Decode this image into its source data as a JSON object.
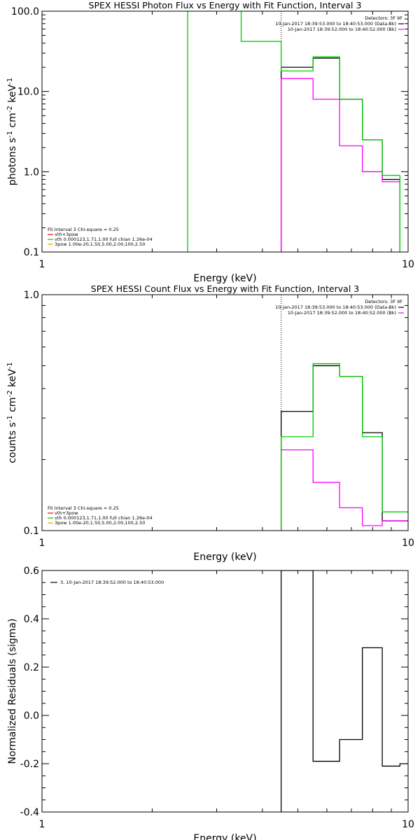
{
  "chart_data": [
    {
      "type": "line",
      "title": "SPEX HESSI Photon Flux vs Energy with Fit Function, Interval 3",
      "xlabel": "Energy (keV)",
      "ylabel": "photons s^-1 cm^-2 keV^-1",
      "xscale": "log",
      "yscale": "log",
      "xlim": [
        1,
        10
      ],
      "ylim": [
        0.1,
        100
      ],
      "xticks": [
        {
          "v": 1,
          "label": "1"
        },
        {
          "v": 10,
          "label": "10"
        }
      ],
      "yticks": [
        {
          "v": 0.1,
          "label": "0.1"
        },
        {
          "v": 1,
          "label": "1.0"
        },
        {
          "v": 10,
          "label": "10.0"
        },
        {
          "v": 100,
          "label": "100.0"
        }
      ],
      "vline": 4.5,
      "legend_top": {
        "position": "top-right",
        "lines": [
          {
            "text": "Detectors: 3F 9F",
            "color": null
          },
          {
            "text": "10-Jan-2017 18:39:53.000 to 18:40:53.000 (Data-Bk)",
            "color": "#000000"
          },
          {
            "text": "10-Jan-2017 18:39:52.000 to 18:40:52.000 (Bk)",
            "color": "#ff00ff"
          }
        ]
      },
      "legend_bottom": {
        "position": "bottom-left",
        "header": "Fit Interval 3   Chi-square = 0.25",
        "lines": [
          {
            "text": "vth+3pow",
            "color": "#ff0000"
          },
          {
            "text": "vth 0.000123,1.71,1.00   full chian 1.26e-04",
            "color": "#00cc00"
          },
          {
            "text": "3pow 1.00e-20,1.50,5.00,2.00,100,2.50",
            "color": "#e8a000"
          }
        ]
      },
      "series": [
        {
          "name": "Data-Bk",
          "color": "#000000",
          "edges": [
            4.5,
            5.5,
            6.5,
            7.5,
            8.5,
            9.5,
            10
          ],
          "values": [
            20,
            26,
            8,
            2.5,
            0.8,
            0.08
          ]
        },
        {
          "name": "Bk",
          "color": "#ff00ff",
          "edges": [
            4.5,
            5.5,
            6.5,
            7.5,
            8.5,
            9.5,
            10
          ],
          "values": [
            14.5,
            8,
            2.1,
            1.0,
            0.75,
            0.08
          ]
        },
        {
          "name": "vth+3pow",
          "color": "#00cc00",
          "edges": [
            2.5,
            3.5,
            4.5,
            5.5,
            6.5,
            7.5,
            8.5,
            9.5,
            10
          ],
          "values": [
            5000,
            42,
            18,
            27,
            8,
            2.5,
            0.9,
            0.08
          ]
        }
      ]
    },
    {
      "type": "line",
      "title": "SPEX HESSI Count Flux vs Energy with Fit Function, Interval 3",
      "xlabel": "Energy (keV)",
      "ylabel": "counts s^-1 cm^-2 keV^-1",
      "xscale": "log",
      "yscale": "log",
      "xlim": [
        1,
        10
      ],
      "ylim": [
        0.1,
        1
      ],
      "xticks": [
        {
          "v": 1,
          "label": "1"
        },
        {
          "v": 10,
          "label": "10"
        }
      ],
      "yticks": [
        {
          "v": 0.1,
          "label": "0.1"
        },
        {
          "v": 1,
          "label": "1.0"
        }
      ],
      "vline": 4.5,
      "legend_top": {
        "position": "top-right",
        "lines": [
          {
            "text": "Detectors: 3F 9F",
            "color": null
          },
          {
            "text": "10-Jan-2017 18:39:53.000 to 18:40:53.000 (Data-Bk)",
            "color": "#000000"
          },
          {
            "text": "10-Jan-2017 18:39:52.000 to 18:40:52.000 (Bk)",
            "color": "#ff00ff"
          }
        ]
      },
      "legend_bottom": {
        "position": "bottom-left",
        "header": "Fit Interval 3   Chi-square = 0.25",
        "lines": [
          {
            "text": "vth+3pow",
            "color": "#ff0000"
          },
          {
            "text": "vth 0.000123,1.71,1.00   full chian 1.26e-04",
            "color": "#00cc00"
          },
          {
            "text": "3pow 1.00e-20,1.50,5.00,2.00,100,2.50",
            "color": "#e8a000"
          }
        ]
      },
      "series": [
        {
          "name": "Data-Bk",
          "color": "#000000",
          "edges": [
            4.5,
            5.5,
            6.5,
            7.5,
            8.5,
            9.5,
            10
          ],
          "values": [
            0.32,
            0.5,
            0.45,
            0.26,
            0.11,
            0.11
          ]
        },
        {
          "name": "Bk",
          "color": "#ff00ff",
          "edges": [
            4.5,
            5.5,
            6.5,
            7.5,
            8.5,
            9.5,
            10
          ],
          "values": [
            0.22,
            0.16,
            0.125,
            0.105,
            0.11,
            0.11
          ]
        },
        {
          "name": "vth+3pow",
          "color": "#00cc00",
          "edges": [
            4.5,
            5.5,
            6.5,
            7.5,
            8.5,
            9.5,
            10
          ],
          "values": [
            0.25,
            0.51,
            0.45,
            0.25,
            0.12,
            0.12
          ]
        }
      ]
    },
    {
      "type": "line",
      "title": "",
      "xlabel": "Energy (keV)",
      "ylabel": "Normalized Residuals (sigma)",
      "xscale": "log",
      "yscale": "linear",
      "xlim": [
        1,
        10
      ],
      "ylim": [
        -0.4,
        0.6
      ],
      "xticks": [
        {
          "v": 1,
          "label": "1"
        },
        {
          "v": 10,
          "label": "10"
        }
      ],
      "yticks": [
        {
          "v": -0.4,
          "label": "-0.4"
        },
        {
          "v": -0.2,
          "label": "-0.2"
        },
        {
          "v": 0,
          "label": "0.0"
        },
        {
          "v": 0.2,
          "label": "0.2"
        },
        {
          "v": 0.4,
          "label": "0.4"
        },
        {
          "v": 0.6,
          "label": "0.6"
        }
      ],
      "legend_top": {
        "position": "top-left",
        "lines": [
          {
            "text": "3, 10-Jan-2017 18:39:52.000 to 18:40:53.000",
            "color": "#000000"
          }
        ]
      },
      "series": [
        {
          "name": "3, 10-Jan-2017 18:39:52.000 to 18:40:53.000",
          "color": "#000000",
          "edges": [
            4.5,
            5.5,
            6.5,
            7.5,
            8.5,
            9.5,
            10
          ],
          "values": [
            0.6,
            -0.19,
            -0.1,
            0.28,
            -0.21,
            -0.2
          ]
        }
      ]
    }
  ]
}
